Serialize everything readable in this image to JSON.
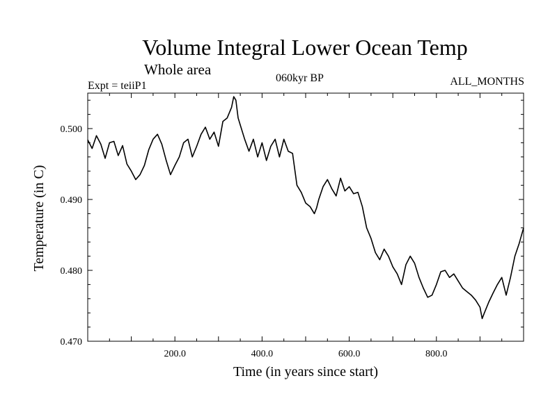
{
  "chart_data": {
    "type": "line",
    "title": "Volume Integral Lower Ocean Temp",
    "subtitle": "Whole area",
    "annotations": {
      "experiment": "Expt = teiiP1",
      "period": "060kyr BP",
      "months": "ALL_MONTHS"
    },
    "xlabel": "Time (in years since start)",
    "ylabel": "Temperature (in C)",
    "xlim": [
      0,
      1000
    ],
    "ylim": [
      0.47,
      0.505
    ],
    "xticks": [
      200,
      400,
      600,
      800
    ],
    "xtick_labels": [
      "200.0",
      "400.0",
      "600.0",
      "800.0"
    ],
    "yticks": [
      0.47,
      0.48,
      0.49,
      0.5
    ],
    "ytick_labels": [
      "0.470",
      "0.480",
      "0.490",
      "0.500"
    ],
    "grid": false,
    "line_color": "#000000",
    "series": [
      {
        "x": [
          0,
          10,
          20,
          30,
          40,
          50,
          60,
          70,
          80,
          90,
          100,
          110,
          120,
          130,
          140,
          150,
          160,
          170,
          180,
          190,
          200,
          210,
          220,
          230,
          240,
          250,
          260,
          270,
          280,
          290,
          300,
          310,
          320,
          330,
          335,
          340,
          345,
          350,
          360,
          370,
          380,
          390,
          400,
          410,
          420,
          430,
          440,
          450,
          460,
          470,
          480,
          490,
          500,
          510,
          520,
          525,
          530,
          540,
          550,
          560,
          570,
          580,
          590,
          600,
          610,
          620,
          630,
          640,
          650,
          660,
          670,
          680,
          690,
          700,
          710,
          720,
          730,
          740,
          750,
          760,
          770,
          780,
          790,
          800,
          810,
          820,
          830,
          840,
          850,
          860,
          870,
          880,
          890,
          900,
          905,
          910,
          920,
          930,
          940,
          950,
          960,
          970,
          980,
          990,
          1000
        ],
        "y": [
          0.4984,
          0.4972,
          0.499,
          0.4978,
          0.4958,
          0.498,
          0.4982,
          0.4962,
          0.4976,
          0.495,
          0.494,
          0.4928,
          0.4935,
          0.4948,
          0.497,
          0.4985,
          0.4992,
          0.4978,
          0.4955,
          0.4935,
          0.4948,
          0.496,
          0.498,
          0.4985,
          0.496,
          0.4975,
          0.4992,
          0.5002,
          0.4985,
          0.4995,
          0.4975,
          0.501,
          0.5015,
          0.503,
          0.5045,
          0.504,
          0.5015,
          0.5005,
          0.4985,
          0.4968,
          0.4985,
          0.496,
          0.498,
          0.4955,
          0.4975,
          0.4985,
          0.496,
          0.4985,
          0.4968,
          0.4965,
          0.492,
          0.491,
          0.4895,
          0.489,
          0.488,
          0.4888,
          0.49,
          0.4918,
          0.4928,
          0.4915,
          0.4905,
          0.493,
          0.4912,
          0.4918,
          0.4908,
          0.491,
          0.489,
          0.486,
          0.4845,
          0.4825,
          0.4815,
          0.483,
          0.482,
          0.4805,
          0.4795,
          0.478,
          0.4808,
          0.482,
          0.481,
          0.479,
          0.4775,
          0.4762,
          0.4765,
          0.478,
          0.4798,
          0.48,
          0.479,
          0.4795,
          0.4785,
          0.4775,
          0.477,
          0.4765,
          0.4758,
          0.4748,
          0.4732,
          0.474,
          0.4755,
          0.4768,
          0.478,
          0.479,
          0.4765,
          0.479,
          0.482,
          0.4838,
          0.486
        ]
      }
    ]
  }
}
